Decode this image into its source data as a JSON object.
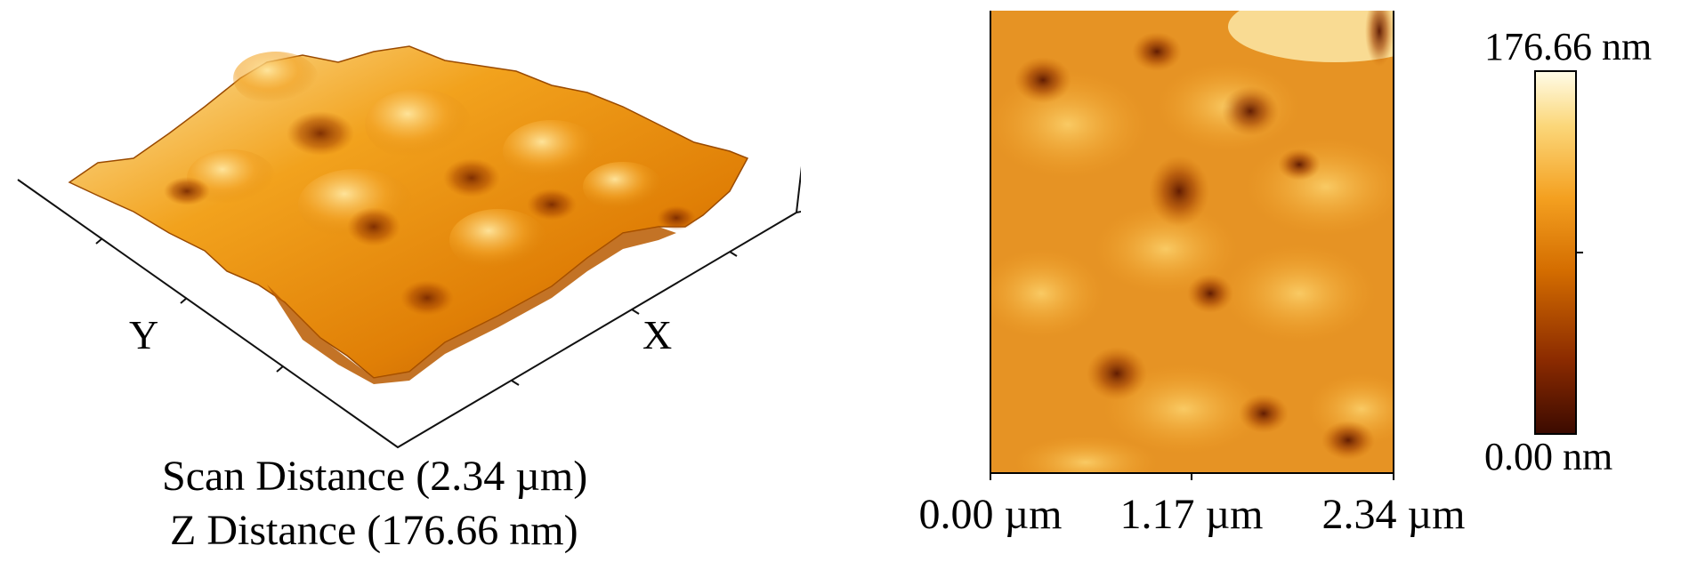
{
  "surface_3d": {
    "y_axis_label": "Y",
    "x_axis_label": "X",
    "caption_line1": "Scan Distance (2.34 µm)",
    "caption_line2": "Z Distance (176.66 nm)"
  },
  "height_map": {
    "x_ticks": [
      "0.00 µm",
      "1.17 µm",
      "2.34 µm"
    ],
    "colorbar_max": "176.66 nm",
    "colorbar_min": "0.00 nm",
    "colormap": [
      "#3b0a00",
      "#8a2a00",
      "#d46d00",
      "#f4a020",
      "#fbd77a",
      "#fffce8"
    ]
  }
}
